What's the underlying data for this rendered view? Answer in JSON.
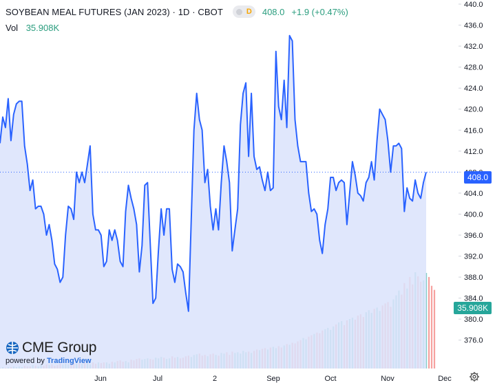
{
  "header": {
    "title": "SOYBEAN MEAL FUTURES (JAN 2023) · 1D · CBOT",
    "status_letter": "D",
    "last_price": "408.0",
    "change": "+1.9 (+0.47%)",
    "volume_label": "Vol",
    "volume_value": "35.908K"
  },
  "price_axis": {
    "ticks": [
      "440.0",
      "436.0",
      "432.0",
      "428.0",
      "424.0",
      "420.0",
      "416.0",
      "412.0",
      "408.0",
      "404.0",
      "400.0",
      "396.0",
      "392.0",
      "388.0",
      "384.0",
      "380.0",
      "376.0"
    ],
    "current_price_label": "408.0",
    "current_volume_label": "35.908K"
  },
  "time_axis": {
    "labels": [
      "Jun",
      "Jul",
      "2",
      "Sep",
      "Oct",
      "Nov",
      "Dec"
    ]
  },
  "branding": {
    "logo_text": "CME Group",
    "powered_by": "powered by",
    "powered_brand": "TradingView"
  },
  "colors": {
    "line": "#2962ff",
    "area": "#dbe3fb",
    "volume_up": "#26a69a",
    "volume_down": "#ef5350",
    "text_green": "#2a9d7e"
  },
  "chart_data": {
    "type": "area",
    "title": "SOYBEAN MEAL FUTURES (JAN 2023) · 1D · CBOT",
    "xlabel": "",
    "ylabel": "",
    "ylim": [
      374,
      440
    ],
    "x_tick_labels": [
      "Jun",
      "Jul",
      "2",
      "Sep",
      "Oct",
      "Nov",
      "Dec"
    ],
    "series": [
      {
        "values": [
          413.5,
          418.5,
          416.5,
          422,
          414,
          419,
          421,
          421.5,
          421.5,
          413,
          409.5,
          404.5,
          406.5,
          401,
          401.5,
          401.5,
          400,
          396,
          398,
          395,
          390.5,
          389.5,
          387,
          388,
          396,
          401.5,
          401,
          399,
          408,
          406,
          408,
          406,
          409.5,
          413,
          400,
          397,
          397,
          396,
          390,
          391,
          397,
          395,
          397,
          395,
          391,
          390,
          400.5,
          405.5,
          403,
          401,
          398,
          389,
          394,
          405.5,
          406,
          394.5,
          383,
          384,
          393,
          401,
          396,
          401,
          401,
          389.5,
          387,
          390.5,
          390,
          389,
          385,
          381.5,
          399,
          416,
          423,
          418,
          416,
          406,
          408.5,
          401.5,
          397,
          401,
          397,
          406,
          413,
          410,
          406,
          393,
          397,
          401,
          417,
          423,
          425,
          411,
          423,
          411,
          408.5,
          409,
          406.5,
          404.5,
          408,
          404.5,
          405,
          431,
          420.5,
          418,
          425.5,
          416.5,
          434,
          433,
          418,
          413,
          410,
          410,
          410,
          404,
          400.5,
          401,
          400,
          395,
          392.5,
          398,
          401,
          407,
          407,
          404.5,
          406,
          406.5,
          406,
          398,
          404,
          410,
          407.5,
          404,
          403.5,
          402.5,
          406,
          407,
          410,
          406.5,
          414,
          420,
          419,
          418,
          414,
          408,
          413,
          413,
          413.5,
          412.5,
          400.5,
          405,
          403,
          402.5,
          406.5,
          404,
          403,
          406,
          408
        ]
      },
      {
        "name": "Volume",
        "values": [
          0.1,
          0.2,
          0.1,
          0.2,
          0.2,
          0.3,
          0.2,
          0.3,
          0.2,
          0.4,
          0.3,
          0.3,
          0.5,
          0.4,
          0.3,
          0.6,
          0.4,
          0.6,
          0.5,
          0.6,
          0.4,
          0.5,
          0.7,
          0.6,
          0.7,
          0.6,
          0.7,
          0.8,
          0.7,
          0.8,
          0.7,
          0.8,
          0.8,
          0.6,
          0.9,
          0.7,
          0.9,
          0.8,
          0.9,
          0.9,
          0.7,
          1.0,
          0.9,
          1.1,
          1.2,
          1.0,
          1.1,
          0.9,
          1.3,
          1.2,
          1.4,
          1.5,
          1.3,
          1.4,
          1.5,
          1.4,
          1.3,
          1.6,
          1.5,
          1.7,
          1.6,
          1.4,
          1.5,
          1.8,
          1.6,
          1.7,
          1.5,
          1.6,
          1.8,
          1.9,
          1.7,
          2.0,
          2.1,
          2.2,
          1.9,
          2.0,
          1.8,
          2.1,
          2.2,
          2.0,
          1.9,
          2.3,
          2.2,
          2.4,
          2.0,
          2.5,
          2.3,
          2.4,
          2.2,
          2.6,
          2.4,
          2.5,
          2.3,
          2.6,
          2.8,
          2.7,
          2.9,
          3.0,
          2.8,
          3.1,
          3.2,
          3.0,
          3.3,
          3.1,
          3.4,
          3.6,
          3.5,
          3.8,
          3.7,
          4.0,
          4.2,
          4.5,
          4.3,
          4.7,
          4.9,
          5.1,
          5.3,
          5.2,
          5.6,
          5.8,
          6.0,
          5.7,
          6.2,
          6.5,
          6.8,
          7.0,
          6.4,
          7.1,
          7.3,
          7.5,
          7.2,
          7.8,
          8.0,
          7.6,
          8.3,
          8.6,
          8.2,
          8.8,
          9.0,
          8.5,
          9.3,
          9.6,
          9.8,
          9.1,
          10.2,
          10.8,
          11.5,
          10.9,
          12.6,
          11.8,
          13.5,
          12.4,
          14.2,
          13.6,
          12.8,
          13.0,
          14.1,
          13.5,
          12.2,
          11.6
        ]
      }
    ],
    "volume_colors": "alternating up/down bars; up = green, down = red"
  }
}
